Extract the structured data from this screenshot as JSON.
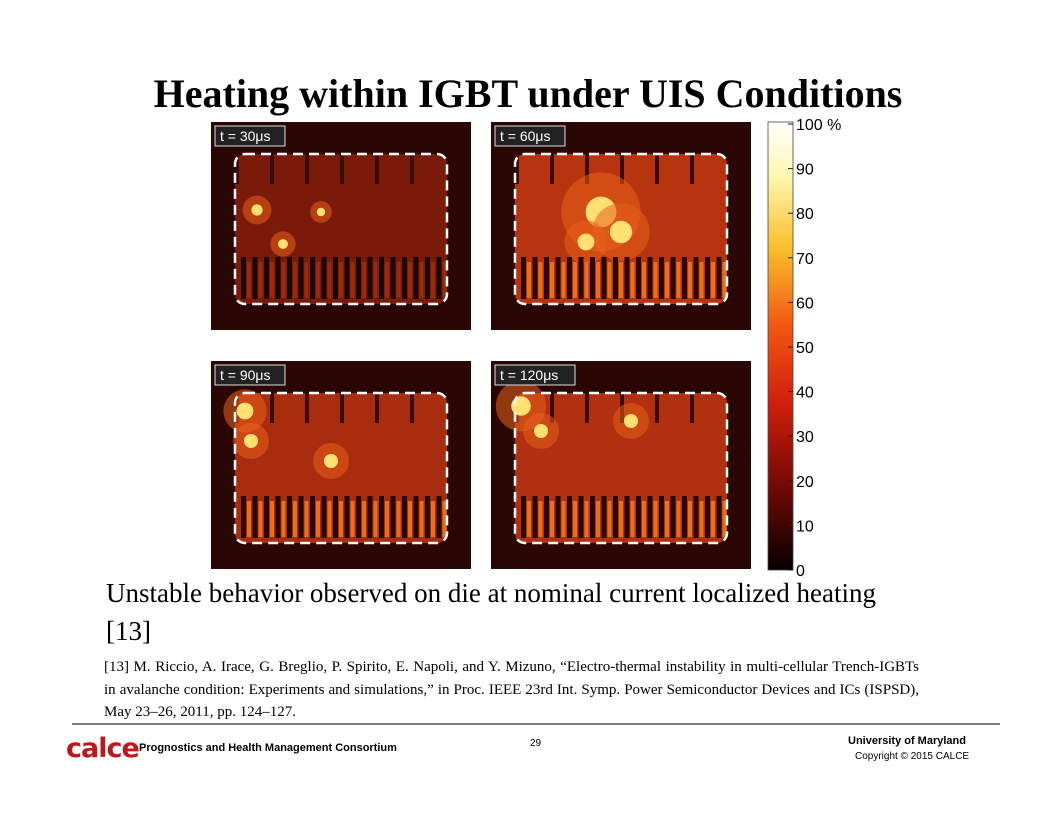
{
  "title": "Heating within IGBT under UIS Conditions",
  "panels": [
    {
      "label": "t = 30μs"
    },
    {
      "label": "t = 60μs"
    },
    {
      "label": "t = 90μs"
    },
    {
      "label": "t = 120μs"
    }
  ],
  "colorbar": {
    "ticks": [
      "100 %",
      "90",
      "80",
      "70",
      "60",
      "50",
      "40",
      "30",
      "20",
      "10",
      "0"
    ]
  },
  "body": "Unstable behavior observed on die at nominal current localized heating [13]",
  "reference": "[13] M. Riccio, A. Irace, G. Breglio, P. Spirito, E. Napoli, and Y. Mizuno, “Electro-thermal instability in multi-cellular Trench-IGBTs in avalanche condition: Experiments and simulations,” in Proc. IEEE 23rd Int. Symp. Power Semiconductor Devices and ICs (ISPSD), May 23–26, 2011, pp. 124–127.",
  "footer": {
    "logo": "calce",
    "consortium": "Prognostics and Health Management Consortium",
    "page": "29",
    "university": "University of Maryland",
    "copyright": "Copyright © 2015 CALCE"
  }
}
